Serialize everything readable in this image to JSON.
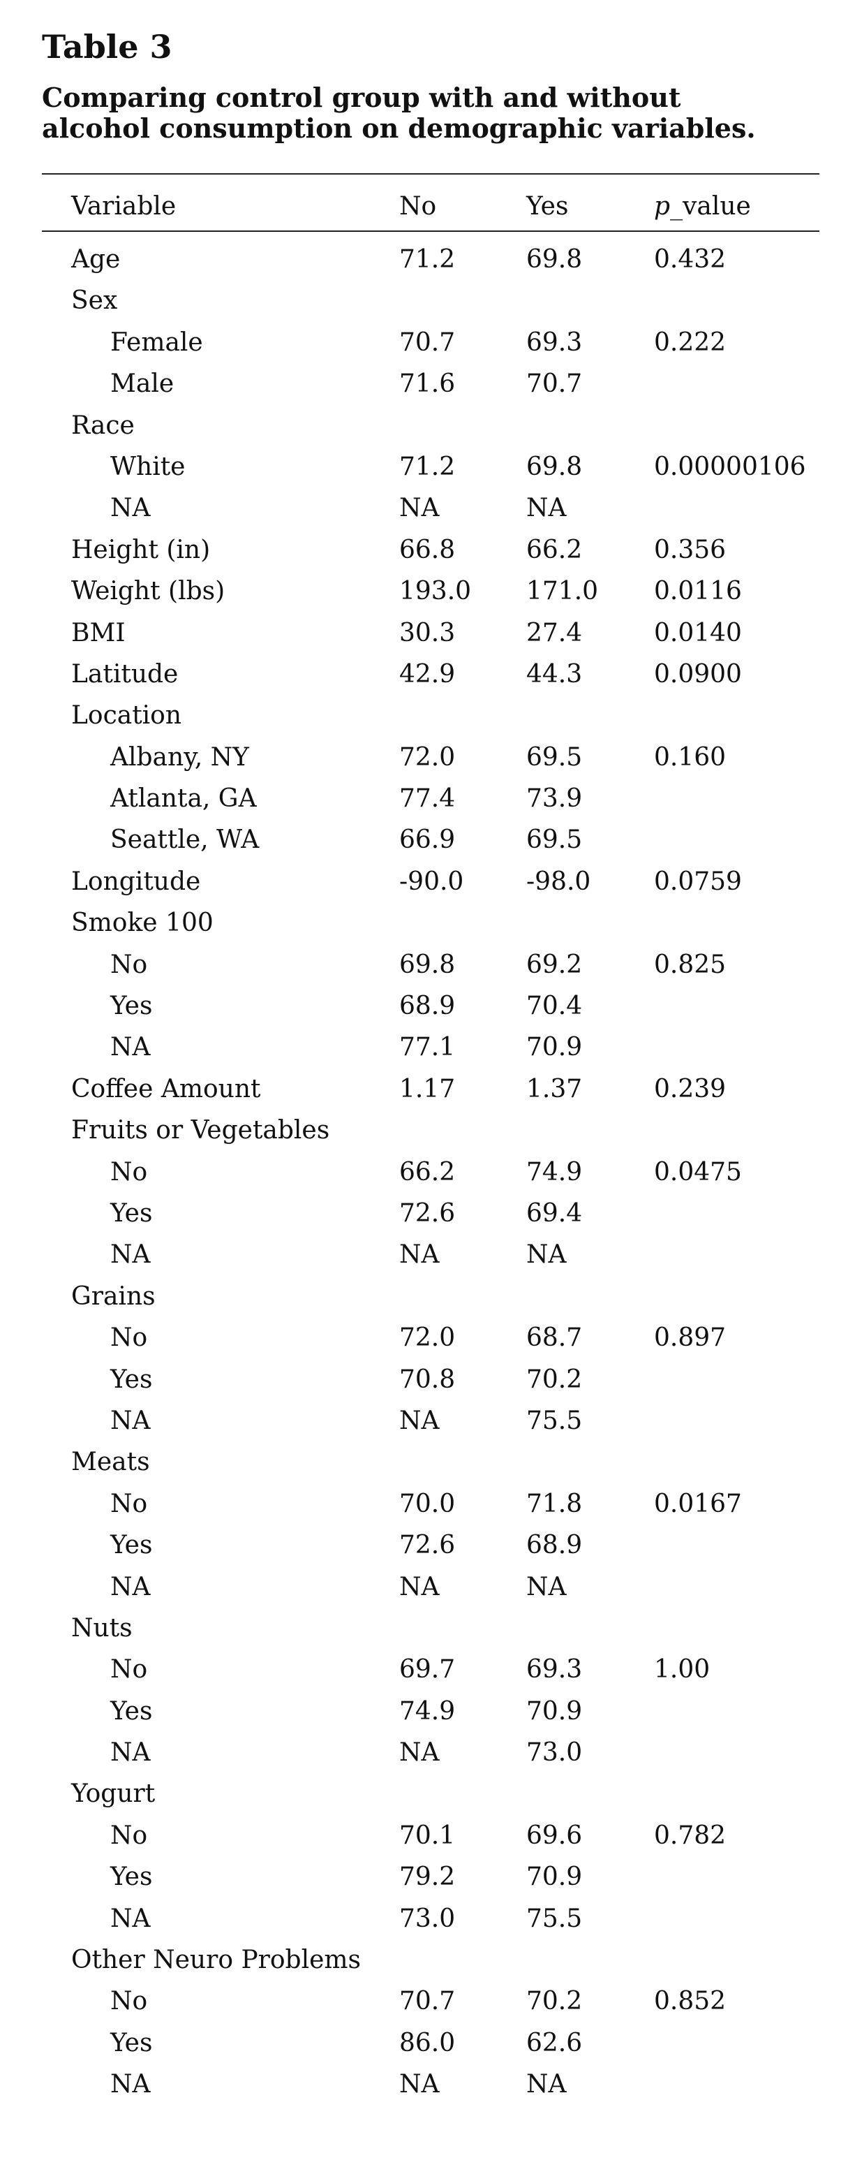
{
  "title": "Table 3",
  "caption": {
    "line1": "Comparing control group with and without",
    "line2": "alcohol consumption on demographic variables."
  },
  "header": {
    "variable": "Variable",
    "no": "No",
    "yes": "Yes",
    "p_italic": "p",
    "p_rest": "_value"
  },
  "rows": [
    {
      "label": "Age",
      "indent": false,
      "no": "71.2",
      "yes": "69.8",
      "p": "0.432"
    },
    {
      "label": "Sex",
      "indent": false,
      "no": "",
      "yes": "",
      "p": ""
    },
    {
      "label": "Female",
      "indent": true,
      "no": "70.7",
      "yes": "69.3",
      "p": "0.222"
    },
    {
      "label": "Male",
      "indent": true,
      "no": "71.6",
      "yes": "70.7",
      "p": ""
    },
    {
      "label": "Race",
      "indent": false,
      "no": "",
      "yes": "",
      "p": ""
    },
    {
      "label": "White",
      "indent": true,
      "no": "71.2",
      "yes": "69.8",
      "p": "0.00000106"
    },
    {
      "label": "NA",
      "indent": true,
      "no": "NA",
      "yes": "NA",
      "p": ""
    },
    {
      "label": "Height (in)",
      "indent": false,
      "no": "66.8",
      "yes": "66.2",
      "p": "0.356"
    },
    {
      "label": "Weight (lbs)",
      "indent": false,
      "no": "193.0",
      "yes": "171.0",
      "p": "0.0116"
    },
    {
      "label": "BMI",
      "indent": false,
      "no": "30.3",
      "yes": "27.4",
      "p": "0.0140"
    },
    {
      "label": "Latitude",
      "indent": false,
      "no": "42.9",
      "yes": "44.3",
      "p": "0.0900"
    },
    {
      "label": "Location",
      "indent": false,
      "no": "",
      "yes": "",
      "p": ""
    },
    {
      "label": "Albany, NY",
      "indent": true,
      "no": "72.0",
      "yes": "69.5",
      "p": "0.160"
    },
    {
      "label": "Atlanta, GA",
      "indent": true,
      "no": "77.4",
      "yes": "73.9",
      "p": ""
    },
    {
      "label": "Seattle, WA",
      "indent": true,
      "no": "66.9",
      "yes": "69.5",
      "p": ""
    },
    {
      "label": "Longitude",
      "indent": false,
      "no": "-90.0",
      "yes": "-98.0",
      "p": "0.0759"
    },
    {
      "label": "Smoke 100",
      "indent": false,
      "no": "",
      "yes": "",
      "p": ""
    },
    {
      "label": "No",
      "indent": true,
      "no": "69.8",
      "yes": "69.2",
      "p": "0.825"
    },
    {
      "label": "Yes",
      "indent": true,
      "no": "68.9",
      "yes": "70.4",
      "p": ""
    },
    {
      "label": "NA",
      "indent": true,
      "no": "77.1",
      "yes": "70.9",
      "p": ""
    },
    {
      "label": "Coffee Amount",
      "indent": false,
      "no": "1.17",
      "yes": "1.37",
      "p": "0.239"
    },
    {
      "label": "Fruits or Vegetables",
      "indent": false,
      "no": "",
      "yes": "",
      "p": ""
    },
    {
      "label": "No",
      "indent": true,
      "no": "66.2",
      "yes": "74.9",
      "p": "0.0475"
    },
    {
      "label": "Yes",
      "indent": true,
      "no": "72.6",
      "yes": "69.4",
      "p": ""
    },
    {
      "label": "NA",
      "indent": true,
      "no": "NA",
      "yes": "NA",
      "p": ""
    },
    {
      "label": "Grains",
      "indent": false,
      "no": "",
      "yes": "",
      "p": ""
    },
    {
      "label": "No",
      "indent": true,
      "no": "72.0",
      "yes": "68.7",
      "p": "0.897"
    },
    {
      "label": "Yes",
      "indent": true,
      "no": "70.8",
      "yes": "70.2",
      "p": ""
    },
    {
      "label": "NA",
      "indent": true,
      "no": "NA",
      "yes": "75.5",
      "p": ""
    },
    {
      "label": "Meats",
      "indent": false,
      "no": "",
      "yes": "",
      "p": ""
    },
    {
      "label": "No",
      "indent": true,
      "no": "70.0",
      "yes": "71.8",
      "p": "0.0167"
    },
    {
      "label": "Yes",
      "indent": true,
      "no": "72.6",
      "yes": "68.9",
      "p": ""
    },
    {
      "label": "NA",
      "indent": true,
      "no": "NA",
      "yes": "NA",
      "p": ""
    },
    {
      "label": "Nuts",
      "indent": false,
      "no": "",
      "yes": "",
      "p": ""
    },
    {
      "label": "No",
      "indent": true,
      "no": "69.7",
      "yes": "69.3",
      "p": "1.00"
    },
    {
      "label": "Yes",
      "indent": true,
      "no": "74.9",
      "yes": "70.9",
      "p": ""
    },
    {
      "label": "NA",
      "indent": true,
      "no": "NA",
      "yes": "73.0",
      "p": ""
    },
    {
      "label": "Yogurt",
      "indent": false,
      "no": "",
      "yes": "",
      "p": ""
    },
    {
      "label": "No",
      "indent": true,
      "no": "70.1",
      "yes": "69.6",
      "p": "0.782"
    },
    {
      "label": "Yes",
      "indent": true,
      "no": "79.2",
      "yes": "70.9",
      "p": ""
    },
    {
      "label": "NA",
      "indent": true,
      "no": "73.0",
      "yes": "75.5",
      "p": ""
    },
    {
      "label": "Other Neuro Problems",
      "indent": false,
      "no": "",
      "yes": "",
      "p": ""
    },
    {
      "label": "No",
      "indent": true,
      "no": "70.7",
      "yes": "70.2",
      "p": "0.852"
    },
    {
      "label": "Yes",
      "indent": true,
      "no": "86.0",
      "yes": "62.6",
      "p": ""
    },
    {
      "label": "NA",
      "indent": true,
      "no": "NA",
      "yes": "NA",
      "p": ""
    }
  ]
}
